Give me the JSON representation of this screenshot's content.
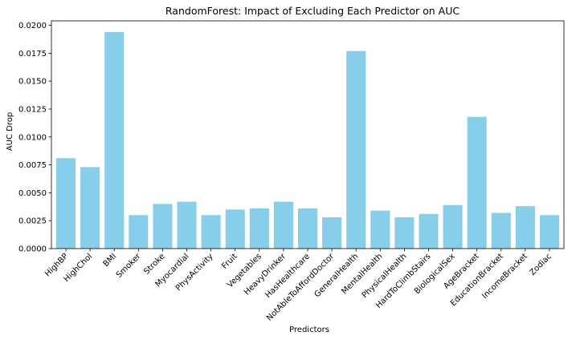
{
  "chart_data": {
    "type": "bar",
    "title": "RandomForest: Impact of Excluding Each Predictor on AUC",
    "xlabel": "Predictors",
    "ylabel": "AUC Drop",
    "ylim": [
      0,
      0.0204
    ],
    "yticks": [
      "0.0000",
      "0.0025",
      "0.0050",
      "0.0075",
      "0.0100",
      "0.0125",
      "0.0150",
      "0.0175",
      "0.0200"
    ],
    "ytick_values": [
      0,
      0.0025,
      0.005,
      0.0075,
      0.01,
      0.0125,
      0.015,
      0.0175,
      0.02
    ],
    "bar_color": "#87ceeb",
    "grid": false,
    "categories": [
      "HighBP",
      "HighChol",
      "BMI",
      "Smoker",
      "Stroke",
      "Myocardial",
      "PhysActivity",
      "Fruit",
      "Vegetables",
      "HeavyDrinker",
      "HasHealthcare",
      "NotAbleToAffordDoctor",
      "GeneralHealth",
      "MentalHealth",
      "PhysicalHealth",
      "HardToClimbStairs",
      "BiologicalSex",
      "AgeBracket",
      "EducationBracket",
      "IncomeBracket",
      "Zodiac"
    ],
    "values": [
      0.0081,
      0.0073,
      0.0194,
      0.003,
      0.004,
      0.0042,
      0.003,
      0.0035,
      0.0036,
      0.0042,
      0.0036,
      0.0028,
      0.0177,
      0.0034,
      0.0028,
      0.0031,
      0.0039,
      0.0118,
      0.0032,
      0.0038,
      0.003
    ]
  }
}
